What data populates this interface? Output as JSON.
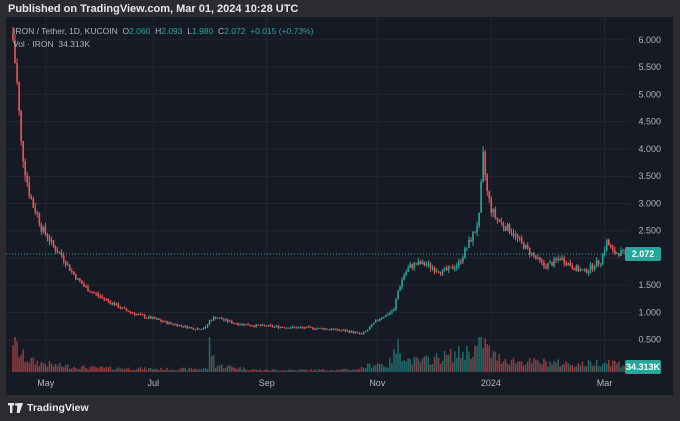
{
  "header": {
    "published": "Published on TradingView.com, Mar 01, 2024 10:28 UTC"
  },
  "legend": {
    "symbol": "IRON / Tether, 1D, KUCOIN",
    "o_label": "O",
    "o": "2.060",
    "h_label": "H",
    "h": "2.093",
    "l_label": "L",
    "l": "1.980",
    "c_label": "C",
    "c": "2.072",
    "change": "+0.015 (+0.73%)",
    "vol_label": "Vol · IRON",
    "vol": "34.313K"
  },
  "price_tag": "2.072",
  "volume_tag": "34.313K",
  "footer": {
    "brand": "TradingView"
  },
  "colors": {
    "up": "#26a69a",
    "down": "#ef5350",
    "bg": "#161a25",
    "grid": "#232632",
    "text": "#b2b5be"
  },
  "chart_data": {
    "type": "candlestick",
    "title": "IRON / Tether, 1D, KUCOIN",
    "y_ticks": [
      "0.500",
      "1.000",
      "1.500",
      "2.000",
      "2.500",
      "3.000",
      "3.500",
      "4.000",
      "4.500",
      "5.000",
      "5.500",
      "6.000"
    ],
    "x_ticks": [
      "May",
      "Jul",
      "Sep",
      "Nov",
      "2024",
      "Mar"
    ],
    "ylim": [
      0,
      6.2
    ],
    "last_price": 2.072,
    "last_volume": "34.313K",
    "grid": true,
    "price_path": [
      [
        0,
        6.0
      ],
      [
        2,
        5.2
      ],
      [
        4,
        4.1
      ],
      [
        6,
        3.6
      ],
      [
        8,
        3.2
      ],
      [
        10,
        2.95
      ],
      [
        12,
        2.8
      ],
      [
        14,
        2.55
      ],
      [
        17,
        2.4
      ],
      [
        20,
        2.2
      ],
      [
        24,
        2.05
      ],
      [
        28,
        1.8
      ],
      [
        32,
        1.6
      ],
      [
        36,
        1.45
      ],
      [
        40,
        1.35
      ],
      [
        45,
        1.25
      ],
      [
        50,
        1.15
      ],
      [
        55,
        1.05
      ],
      [
        60,
        0.98
      ],
      [
        65,
        0.92
      ],
      [
        70,
        0.88
      ],
      [
        75,
        0.82
      ],
      [
        80,
        0.78
      ],
      [
        85,
        0.74
      ],
      [
        90,
        0.7
      ],
      [
        95,
        0.72
      ],
      [
        97,
        0.85
      ],
      [
        100,
        0.92
      ],
      [
        105,
        0.85
      ],
      [
        110,
        0.8
      ],
      [
        115,
        0.78
      ],
      [
        120,
        0.76
      ],
      [
        125,
        0.75
      ],
      [
        130,
        0.74
      ],
      [
        135,
        0.73
      ],
      [
        140,
        0.72
      ],
      [
        145,
        0.72
      ],
      [
        150,
        0.71
      ],
      [
        155,
        0.7
      ],
      [
        160,
        0.68
      ],
      [
        165,
        0.66
      ],
      [
        170,
        0.62
      ],
      [
        172,
        0.6
      ],
      [
        175,
        0.68
      ],
      [
        178,
        0.8
      ],
      [
        181,
        0.9
      ],
      [
        184,
        0.95
      ],
      [
        188,
        1.05
      ],
      [
        190,
        1.4
      ],
      [
        193,
        1.7
      ],
      [
        196,
        1.85
      ],
      [
        200,
        1.9
      ],
      [
        204,
        1.88
      ],
      [
        208,
        1.8
      ],
      [
        212,
        1.75
      ],
      [
        216,
        1.8
      ],
      [
        220,
        1.9
      ],
      [
        224,
        2.2
      ],
      [
        228,
        2.5
      ],
      [
        230,
        2.75
      ],
      [
        232,
        3.85
      ],
      [
        234,
        3.2
      ],
      [
        236,
        2.9
      ],
      [
        238,
        2.75
      ],
      [
        242,
        2.6
      ],
      [
        246,
        2.5
      ],
      [
        250,
        2.3
      ],
      [
        254,
        2.15
      ],
      [
        258,
        2.0
      ],
      [
        262,
        1.85
      ],
      [
        266,
        1.9
      ],
      [
        270,
        2.0
      ],
      [
        274,
        1.9
      ],
      [
        278,
        1.8
      ],
      [
        282,
        1.75
      ],
      [
        286,
        1.85
      ],
      [
        290,
        1.95
      ],
      [
        293,
        2.3
      ],
      [
        296,
        2.1
      ],
      [
        299,
        2.1
      ],
      [
        302,
        2.072
      ]
    ],
    "volume_path": [
      [
        0,
        1.0
      ],
      [
        3,
        0.55
      ],
      [
        6,
        0.4
      ],
      [
        10,
        0.3
      ],
      [
        15,
        0.25
      ],
      [
        20,
        0.2
      ],
      [
        30,
        0.15
      ],
      [
        40,
        0.12
      ],
      [
        60,
        0.1
      ],
      [
        80,
        0.08
      ],
      [
        96,
        0.1
      ],
      [
        97,
        0.8
      ],
      [
        100,
        0.2
      ],
      [
        120,
        0.06
      ],
      [
        150,
        0.06
      ],
      [
        168,
        0.07
      ],
      [
        172,
        0.12
      ],
      [
        180,
        0.25
      ],
      [
        185,
        0.18
      ],
      [
        190,
        0.7
      ],
      [
        195,
        0.35
      ],
      [
        200,
        0.3
      ],
      [
        210,
        0.4
      ],
      [
        222,
        0.55
      ],
      [
        228,
        0.65
      ],
      [
        232,
        0.9
      ],
      [
        236,
        0.5
      ],
      [
        240,
        0.4
      ],
      [
        250,
        0.3
      ],
      [
        260,
        0.28
      ],
      [
        270,
        0.25
      ],
      [
        280,
        0.22
      ],
      [
        290,
        0.28
      ],
      [
        295,
        0.3
      ],
      [
        302,
        0.2
      ]
    ]
  }
}
